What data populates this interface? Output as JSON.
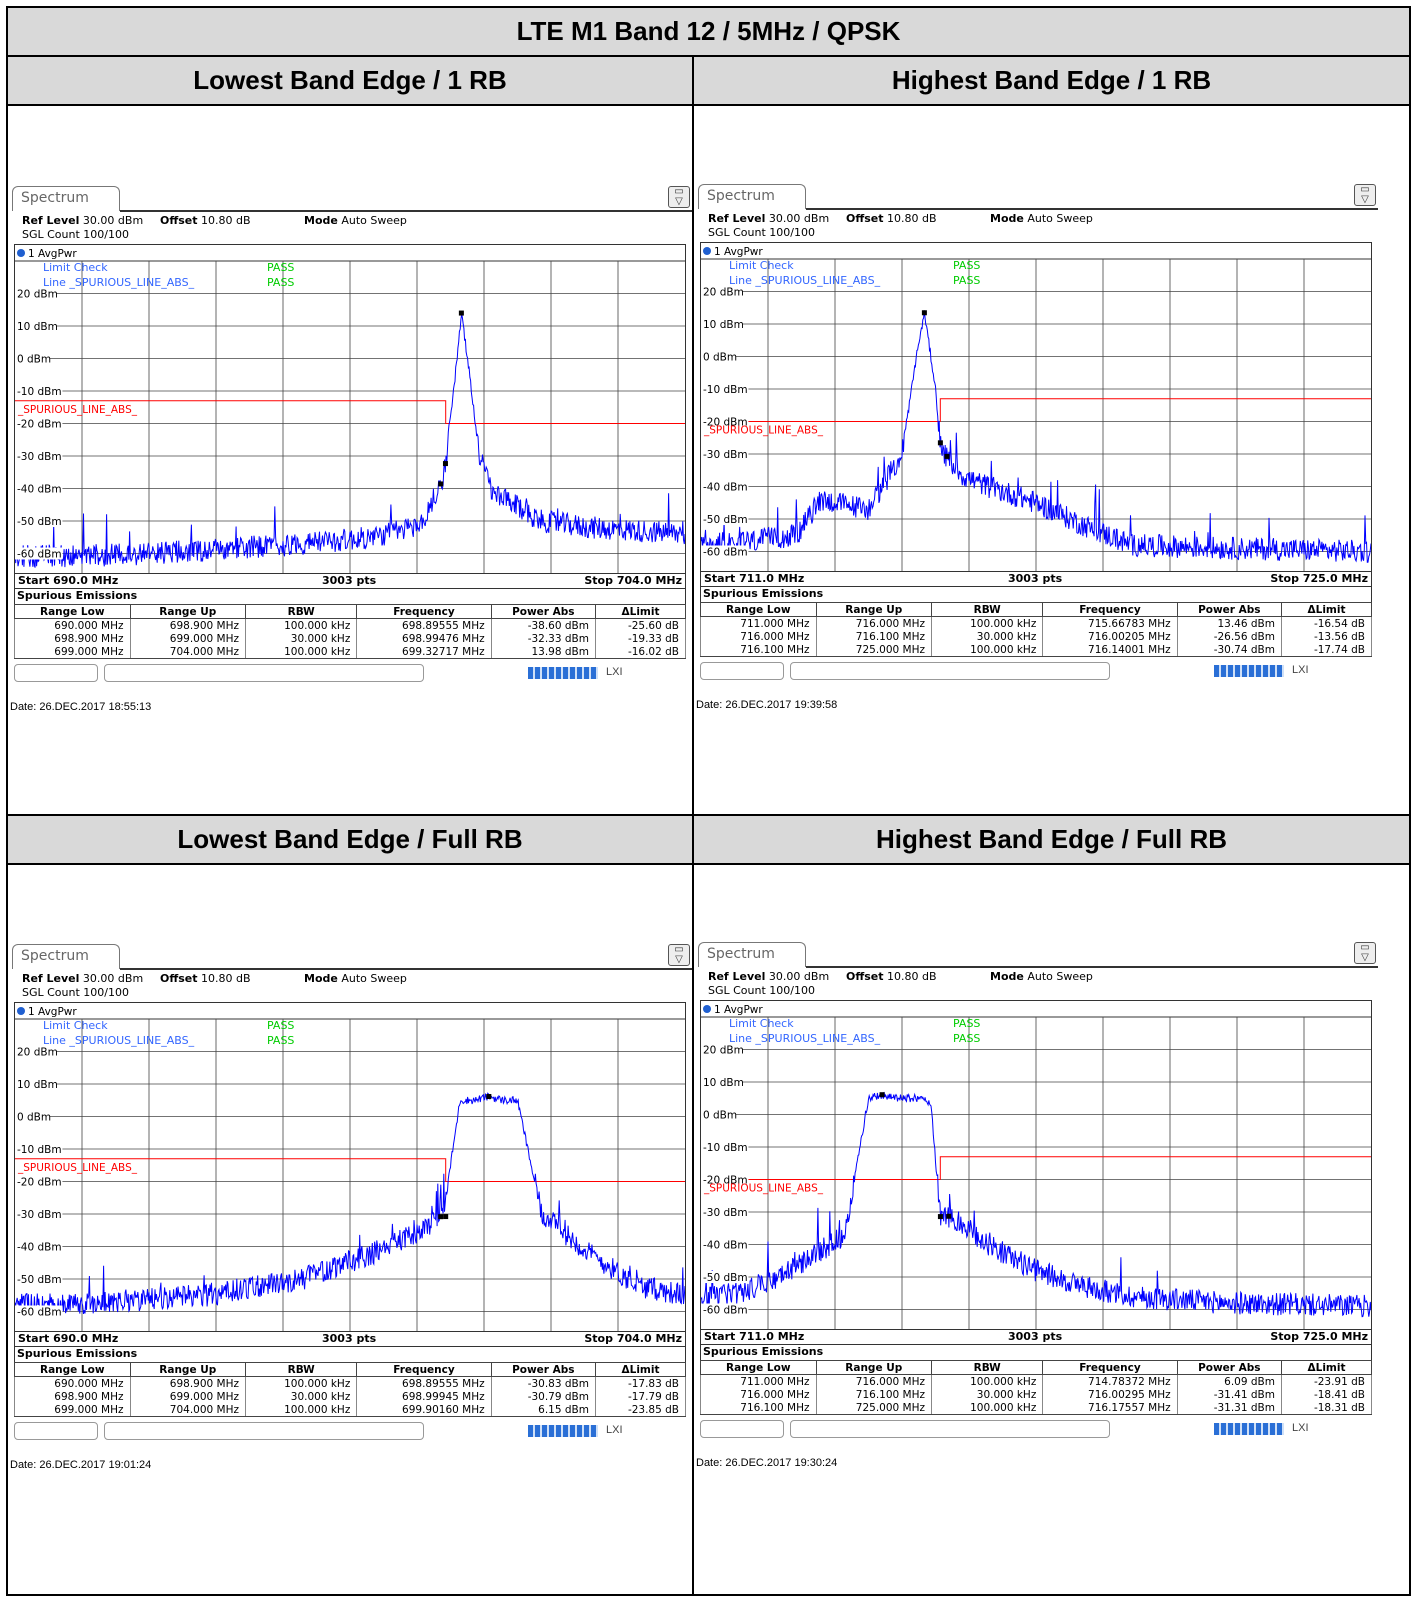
{
  "report": {
    "title": "LTE M1 Band 12 / 5MHz / QPSK"
  },
  "common": {
    "tab_label": "Spectrum",
    "ref_level_label": "Ref Level",
    "ref_level_value": "30.00 dBm",
    "offset_label": "Offset",
    "offset_value": "10.80 dB",
    "mode_label": "Mode",
    "mode_value": "Auto Sweep",
    "sgl_count": "SGL Count 100/100",
    "trace_label": "1 AvgPwr",
    "limit_check_label": "Limit Check",
    "line_label": "Line",
    "limit_line_name": "_SPURIOUS_LINE_ABS_",
    "pass_label": "PASS",
    "points_label": "3003 pts",
    "spurious_title": "Spurious Emissions",
    "table_headers": [
      "Range Low",
      "Range Up",
      "RBW",
      "Frequency",
      "Power Abs",
      "ΔLimit"
    ],
    "y_tick_labels": [
      "20 dBm",
      "10 dBm",
      "0 dBm",
      "-10 dBm",
      "-20 dBm",
      "-30 dBm",
      "-40 dBm",
      "-50 dBm",
      "-60 dBm"
    ],
    "colors": {
      "trace": "#0000ff",
      "limit": "#ff0000",
      "pass": "#00cc00",
      "label_blue": "#3366ff",
      "grid": "#333333"
    }
  },
  "panels": [
    {
      "header": "Lowest Band Edge / 1 RB",
      "start_label": "Start 690.0 MHz",
      "stop_label": "Stop 704.0 MHz",
      "date": "Date: 26.DEC.2017  18:55:13",
      "rows": [
        [
          "690.000 MHz",
          "698.900 MHz",
          "100.000 kHz",
          "698.89555 MHz",
          "-38.60 dBm",
          "-25.60 dB"
        ],
        [
          "698.900 MHz",
          "699.000 MHz",
          "30.000 kHz",
          "698.99476 MHz",
          "-32.33 dBm",
          "-19.33 dB"
        ],
        [
          "699.000 MHz",
          "704.000 MHz",
          "100.000 kHz",
          "699.32717 MHz",
          "13.98 dBm",
          "-16.02 dB"
        ]
      ]
    },
    {
      "header": "Highest Band Edge / 1 RB",
      "start_label": "Start 711.0 MHz",
      "stop_label": "Stop 725.0 MHz",
      "date": "Date: 26.DEC.2017  19:39:58",
      "rows": [
        [
          "711.000 MHz",
          "716.000 MHz",
          "100.000 kHz",
          "715.66783 MHz",
          "13.46 dBm",
          "-16.54 dB"
        ],
        [
          "716.000 MHz",
          "716.100 MHz",
          "30.000 kHz",
          "716.00205 MHz",
          "-26.56 dBm",
          "-13.56 dB"
        ],
        [
          "716.100 MHz",
          "725.000 MHz",
          "100.000 kHz",
          "716.14001 MHz",
          "-30.74 dBm",
          "-17.74 dB"
        ]
      ]
    },
    {
      "header": "Lowest Band Edge / Full RB",
      "start_label": "Start 690.0 MHz",
      "stop_label": "Stop 704.0 MHz",
      "date": "Date: 26.DEC.2017  19:01:24",
      "rows": [
        [
          "690.000 MHz",
          "698.900 MHz",
          "100.000 kHz",
          "698.89555 MHz",
          "-30.83 dBm",
          "-17.83 dB"
        ],
        [
          "698.900 MHz",
          "699.000 MHz",
          "30.000 kHz",
          "698.99945 MHz",
          "-30.79 dBm",
          "-17.79 dB"
        ],
        [
          "699.000 MHz",
          "704.000 MHz",
          "100.000 kHz",
          "699.90160 MHz",
          "6.15 dBm",
          "-23.85 dB"
        ]
      ]
    },
    {
      "header": "Highest Band Edge / Full RB",
      "start_label": "Start 711.0 MHz",
      "stop_label": "Stop 725.0 MHz",
      "date": "Date: 26.DEC.2017  19:30:24",
      "rows": [
        [
          "711.000 MHz",
          "716.000 MHz",
          "100.000 kHz",
          "714.78372 MHz",
          "6.09 dBm",
          "-23.91 dB"
        ],
        [
          "716.000 MHz",
          "716.100 MHz",
          "30.000 kHz",
          "716.00295 MHz",
          "-31.41 dBm",
          "-18.41 dB"
        ],
        [
          "716.100 MHz",
          "725.000 MHz",
          "100.000 kHz",
          "716.17557 MHz",
          "-31.31 dBm",
          "-18.31 dB"
        ]
      ]
    }
  ],
  "chart_data": [
    {
      "type": "line",
      "title": "Lowest Band Edge / 1 RB",
      "xlim": [
        690.0,
        704.0
      ],
      "ylim": [
        -66,
        30
      ],
      "grid": true,
      "limit_line": {
        "x": [
          690.0,
          699.0,
          699.0,
          704.0
        ],
        "y": [
          -13,
          -13,
          -20,
          -20
        ]
      },
      "limit_line_levels": {
        "out_of_band": -13,
        "in_band": -20
      },
      "series": [
        {
          "x": [
            690.0,
            692.0,
            694.0,
            696.0,
            697.5,
            698.5,
            698.9,
            699.0,
            699.2,
            699.33,
            699.5,
            699.7,
            700.0,
            700.3,
            701.0,
            702.0,
            703.0,
            704.0
          ],
          "y": [
            -61,
            -60.5,
            -59,
            -57,
            -55,
            -51,
            -38.6,
            -32,
            -5,
            13.98,
            -5,
            -30,
            -42,
            -44,
            -50,
            -52,
            -53,
            -54
          ]
        }
      ],
      "markers": [
        {
          "x": 698.89555,
          "y": -38.6
        },
        {
          "x": 698.99476,
          "y": -32.33
        },
        {
          "x": 699.32717,
          "y": 13.98
        }
      ]
    },
    {
      "type": "line",
      "title": "Highest Band Edge / 1 RB",
      "xlim": [
        711.0,
        725.0
      ],
      "ylim": [
        -66,
        30
      ],
      "grid": true,
      "limit_line": {
        "x": [
          711.0,
          716.0,
          716.0,
          725.0
        ],
        "y": [
          -20,
          -20,
          -13,
          -13
        ]
      },
      "limit_line_levels": {
        "in_band": -20,
        "out_of_band": -13
      },
      "series": [
        {
          "x": [
            711.0,
            712.0,
            713.0,
            713.5,
            714.5,
            715.2,
            715.5,
            715.67,
            715.9,
            716.0,
            716.1,
            716.5,
            717.0,
            718.0,
            719.0,
            720.0,
            722.0,
            725.0
          ],
          "y": [
            -58,
            -57,
            -55,
            -44,
            -47,
            -30,
            0,
            13.46,
            -10,
            -26.56,
            -30.74,
            -37,
            -40,
            -45,
            -52,
            -58,
            -59,
            -60
          ]
        }
      ],
      "markers": [
        {
          "x": 715.66783,
          "y": 13.46
        },
        {
          "x": 716.00205,
          "y": -26.56
        },
        {
          "x": 716.14001,
          "y": -30.74
        }
      ]
    },
    {
      "type": "line",
      "title": "Lowest Band Edge / Full RB",
      "xlim": [
        690.0,
        704.0
      ],
      "ylim": [
        -66,
        30
      ],
      "grid": true,
      "limit_line": {
        "x": [
          690.0,
          699.0,
          699.0,
          704.0
        ],
        "y": [
          -13,
          -13,
          -20,
          -20
        ]
      },
      "limit_line_levels": {
        "out_of_band": -13,
        "in_band": -20
      },
      "series": [
        {
          "x": [
            690.0,
            692.0,
            694.0,
            696.0,
            697.5,
            698.5,
            698.9,
            699.0,
            699.3,
            699.6,
            699.9,
            700.2,
            700.5,
            701.0,
            702.0,
            703.0,
            704.0
          ],
          "y": [
            -58,
            -57,
            -55,
            -50,
            -42,
            -35,
            -31,
            -25,
            5,
            5,
            6.15,
            5,
            5,
            -30,
            -42,
            -52,
            -55
          ]
        }
      ],
      "markers": [
        {
          "x": 698.89555,
          "y": -30.83
        },
        {
          "x": 698.99945,
          "y": -30.79
        },
        {
          "x": 699.9016,
          "y": 6.15
        }
      ]
    },
    {
      "type": "line",
      "title": "Highest Band Edge / Full RB",
      "xlim": [
        711.0,
        725.0
      ],
      "ylim": [
        -66,
        30
      ],
      "grid": true,
      "limit_line": {
        "x": [
          711.0,
          716.0,
          716.0,
          725.0
        ],
        "y": [
          -20,
          -20,
          -13,
          -13
        ]
      },
      "limit_line_levels": {
        "in_band": -20,
        "out_of_band": -13
      },
      "series": [
        {
          "x": [
            711.0,
            712.0,
            713.0,
            714.0,
            714.5,
            714.78,
            715.1,
            715.5,
            715.8,
            716.0,
            716.2,
            717.0,
            718.0,
            719.0,
            720.0,
            722.0,
            725.0
          ],
          "y": [
            -57,
            -54,
            -47,
            -37,
            5,
            6.09,
            5,
            5,
            4,
            -31.41,
            -31.31,
            -40,
            -48,
            -53,
            -56,
            -58,
            -59
          ]
        }
      ],
      "markers": [
        {
          "x": 714.78372,
          "y": 6.09
        },
        {
          "x": 716.00295,
          "y": -31.41
        },
        {
          "x": 716.17557,
          "y": -31.31
        }
      ]
    }
  ]
}
